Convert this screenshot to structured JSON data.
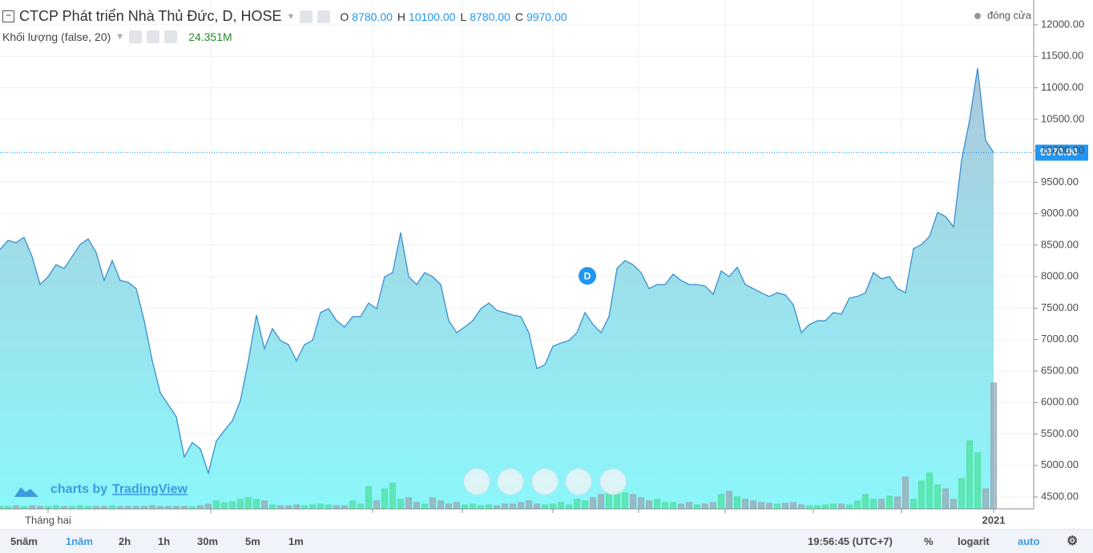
{
  "header": {
    "title": "CTCP Phát triển Nhà Thủ Đức, D, HOSE",
    "ohlc": [
      {
        "label": "O",
        "value": "8780.00"
      },
      {
        "label": "H",
        "value": "10100.00"
      },
      {
        "label": "L",
        "value": "8780.00"
      },
      {
        "label": "C",
        "value": "9970.00"
      }
    ]
  },
  "chart_data": {
    "type": "area",
    "categories": [
      null,
      null,
      null,
      null,
      null,
      null,
      "Tháng hai",
      null,
      null,
      null,
      null,
      null,
      null,
      null,
      null,
      null,
      null,
      null,
      null,
      null,
      null,
      null,
      null,
      null,
      null,
      null,
      null,
      null,
      null,
      null,
      null,
      null,
      null,
      null,
      null,
      null,
      null,
      null,
      null,
      null,
      null,
      null,
      null,
      null,
      null,
      null,
      null,
      null,
      null,
      null,
      null,
      null,
      null,
      null,
      null,
      null,
      null,
      null,
      null,
      null,
      null,
      null,
      null,
      null,
      null,
      null,
      null,
      null,
      null,
      null,
      null,
      null,
      null,
      null,
      null,
      null,
      null,
      null,
      null,
      null,
      null,
      null,
      null,
      null,
      null,
      null,
      null,
      null,
      null,
      null,
      null,
      null,
      null,
      null,
      null,
      null,
      null,
      null,
      null,
      null,
      null,
      null,
      null,
      null,
      null,
      null,
      null,
      null,
      null,
      null,
      null,
      null,
      null,
      null,
      null,
      null,
      null,
      null,
      null,
      null,
      null,
      null,
      null,
      null,
      "2021"
    ],
    "series": [
      {
        "name": "đóng cửa",
        "color": "#3a8fd0",
        "area_top_color": "#a3c3d7",
        "area_bottom_color": "#7ff6fa",
        "values": [
          8430,
          8575,
          8540,
          8625,
          8320,
          7875,
          8000,
          8190,
          8130,
          8320,
          8510,
          8600,
          8385,
          7940,
          8255,
          7940,
          7910,
          7810,
          7300,
          6665,
          6155,
          5965,
          5775,
          5135,
          5365,
          5265,
          4880,
          5390,
          5555,
          5710,
          6030,
          6665,
          7390,
          6855,
          7175,
          6985,
          6920,
          6665,
          6920,
          6985,
          7430,
          7490,
          7300,
          7200,
          7365,
          7365,
          7580,
          7490,
          8000,
          8065,
          8700,
          8000,
          7875,
          8065,
          8000,
          7875,
          7300,
          7110,
          7200,
          7300,
          7490,
          7580,
          7465,
          7430,
          7390,
          7365,
          7110,
          6540,
          6600,
          6895,
          6945,
          6985,
          7110,
          7430,
          7240,
          7110,
          7365,
          8130,
          8255,
          8190,
          8065,
          7810,
          7875,
          7875,
          8040,
          7940,
          7875,
          7875,
          7850,
          7720,
          8090,
          8000,
          8150,
          7875,
          7810,
          7745,
          7685,
          7745,
          7710,
          7555,
          7110,
          7240,
          7300,
          7300,
          7430,
          7405,
          7660,
          7685,
          7745,
          8065,
          7965,
          8000,
          7810,
          7745,
          8445,
          8510,
          8640,
          9020,
          8955,
          8790,
          9850,
          10485,
          11310,
          10165,
          9970
        ]
      }
    ],
    "volume": {
      "name": "Khối lượng (false, 20)",
      "last_label": "24.351M",
      "up_color": "#4fe0a0",
      "down_color": "#9aa8b4",
      "ylim": [
        0,
        31
      ],
      "values": [
        0.47,
        0.47,
        0.62,
        0.47,
        0.62,
        0.47,
        0.47,
        0.62,
        0.47,
        0.47,
        0.62,
        0.47,
        0.47,
        0.47,
        0.62,
        0.47,
        0.47,
        0.47,
        0.47,
        0.62,
        0.47,
        0.47,
        0.47,
        0.47,
        0.47,
        0.62,
        0.93,
        1.55,
        1.24,
        1.4,
        1.86,
        2.17,
        1.86,
        1.55,
        0.78,
        0.62,
        0.62,
        0.78,
        0.62,
        0.78,
        0.93,
        0.78,
        0.62,
        0.62,
        1.55,
        0.93,
        4.34,
        1.55,
        3.88,
        4.96,
        1.86,
        2.17,
        1.24,
        0.93,
        2.17,
        1.55,
        0.93,
        1.24,
        0.78,
        0.93,
        0.62,
        0.78,
        0.62,
        0.93,
        0.93,
        1.24,
        1.55,
        0.93,
        0.78,
        0.93,
        1.24,
        0.78,
        1.86,
        1.55,
        2.17,
        2.79,
        3.1,
        3.41,
        3.1,
        2.79,
        2.17,
        1.55,
        1.86,
        1.24,
        1.24,
        0.93,
        1.24,
        0.78,
        0.93,
        1.24,
        2.79,
        3.41,
        2.33,
        1.86,
        1.55,
        1.24,
        1.09,
        0.93,
        1.09,
        1.24,
        0.78,
        0.62,
        0.62,
        0.78,
        0.93,
        0.93,
        0.78,
        1.55,
        2.79,
        1.86,
        1.86,
        2.48,
        2.33,
        6.2,
        1.86,
        5.43,
        6.98,
        4.65,
        3.88,
        1.86,
        5.89,
        13.18,
        10.85,
        3.88,
        24.351
      ]
    },
    "ylim": [
      4310,
      12395
    ],
    "yticks": [
      {
        "value": 4500,
        "label": "4500.00"
      },
      {
        "value": 5000,
        "label": "5000.00"
      },
      {
        "value": 5500,
        "label": "5500.00"
      },
      {
        "value": 6000,
        "label": "6000.00"
      },
      {
        "value": 6500,
        "label": "6500.00"
      },
      {
        "value": 7000,
        "label": "7000.00"
      },
      {
        "value": 7500,
        "label": "7500.00"
      },
      {
        "value": 8000,
        "label": "8000.00"
      },
      {
        "value": 8500,
        "label": "8500.00"
      },
      {
        "value": 9000,
        "label": "9000.00"
      },
      {
        "value": 9500,
        "label": "9500.00"
      },
      {
        "value": 10000,
        "label": "10000.00"
      },
      {
        "value": 10500,
        "label": "10500.00"
      },
      {
        "value": 11000,
        "label": "11000.00"
      },
      {
        "value": 11500,
        "label": "11500.00"
      },
      {
        "value": 12000,
        "label": "12000.00"
      }
    ],
    "grid": true,
    "last_price": {
      "value": 9970,
      "label": "9970.00",
      "color": "#2196f3"
    },
    "event_marker": {
      "label": "D",
      "value": 8000
    },
    "watermark": {
      "prefix": "charts by",
      "brand": "TradingView"
    }
  },
  "toolbar": {
    "ranges": [
      "5năm",
      "1năm",
      "2h",
      "1h",
      "30m",
      "5m",
      "1m"
    ],
    "time": "19:56:45 (UTC+7)",
    "percent": "%",
    "log": "logarit",
    "auto": "auto"
  }
}
